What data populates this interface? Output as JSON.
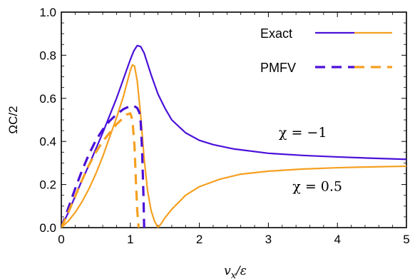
{
  "chart_data": {
    "type": "line",
    "xlabel": "vx/ε",
    "xlabel_main": "v",
    "xlabel_sub": "x",
    "xlabel_rest": "/ε",
    "ylabel": "ΩC/2",
    "xlim": [
      0,
      5
    ],
    "ylim": [
      0,
      1.0
    ],
    "x_ticks": [
      "0",
      "1",
      "2",
      "3",
      "4",
      "5"
    ],
    "y_ticks": [
      "0.0",
      "0.2",
      "0.4",
      "0.6",
      "0.8",
      "1.0"
    ],
    "grid": false,
    "legend_placement": "top-right",
    "legend": [
      {
        "label": "Exact",
        "style": "solid"
      },
      {
        "label": "PMFV",
        "style": "dashed"
      }
    ],
    "annotations": [
      {
        "text": "χ = −1",
        "x": 3.15,
        "y": 0.42
      },
      {
        "text": "χ = 0.5",
        "x": 3.35,
        "y": 0.17
      }
    ],
    "colors": {
      "chi_neg1": "#4b10d9",
      "chi_0_5": "#f5a020"
    },
    "series": [
      {
        "label_ref": "Exact χ = −1",
        "color": "#4b10d9",
        "dash": false,
        "x": [
          0,
          0.1,
          0.2,
          0.3,
          0.4,
          0.5,
          0.6,
          0.7,
          0.8,
          0.9,
          1.0,
          1.05,
          1.1,
          1.15,
          1.2,
          1.3,
          1.4,
          1.5,
          1.6,
          1.8,
          2.0,
          2.2,
          2.5,
          3.0,
          3.5,
          4.0,
          4.5,
          5.0
        ],
        "y": [
          0,
          0.07,
          0.145,
          0.22,
          0.29,
          0.365,
          0.44,
          0.52,
          0.6,
          0.69,
          0.78,
          0.82,
          0.845,
          0.84,
          0.81,
          0.71,
          0.62,
          0.555,
          0.5,
          0.44,
          0.405,
          0.385,
          0.365,
          0.345,
          0.335,
          0.328,
          0.322,
          0.317
        ]
      },
      {
        "label_ref": "Exact χ = 0.5",
        "color": "#f5a020",
        "dash": false,
        "x": [
          0,
          0.1,
          0.2,
          0.3,
          0.4,
          0.5,
          0.6,
          0.7,
          0.8,
          0.9,
          0.95,
          1.0,
          1.03,
          1.06,
          1.1,
          1.15,
          1.2,
          1.25,
          1.3,
          1.35,
          1.4,
          1.45,
          1.5,
          1.6,
          1.8,
          2.0,
          2.3,
          2.6,
          3.0,
          3.5,
          4.0,
          4.5,
          5.0
        ],
        "y": [
          0,
          0.03,
          0.07,
          0.12,
          0.18,
          0.25,
          0.33,
          0.42,
          0.51,
          0.61,
          0.67,
          0.73,
          0.755,
          0.75,
          0.68,
          0.52,
          0.32,
          0.17,
          0.08,
          0.03,
          0.0,
          0.02,
          0.045,
          0.085,
          0.15,
          0.19,
          0.225,
          0.248,
          0.262,
          0.272,
          0.278,
          0.282,
          0.285
        ]
      },
      {
        "label_ref": "PMFV χ = −1",
        "color": "#4b10d9",
        "dash": true,
        "x": [
          0,
          0.1,
          0.2,
          0.3,
          0.4,
          0.5,
          0.6,
          0.7,
          0.8,
          0.9,
          1.0,
          1.05,
          1.1,
          1.13,
          1.15,
          1.17,
          1.19,
          1.2
        ],
        "y": [
          0,
          0.09,
          0.18,
          0.265,
          0.34,
          0.405,
          0.455,
          0.495,
          0.525,
          0.55,
          0.565,
          0.565,
          0.555,
          0.535,
          0.49,
          0.36,
          0.15,
          0.0
        ]
      },
      {
        "label_ref": "PMFV χ = 0.5",
        "color": "#f5a020",
        "dash": true,
        "x": [
          0,
          0.1,
          0.2,
          0.3,
          0.4,
          0.5,
          0.6,
          0.7,
          0.8,
          0.9,
          0.95,
          1.0,
          1.03,
          1.06,
          1.08,
          1.1,
          1.12
        ],
        "y": [
          0,
          0.07,
          0.145,
          0.22,
          0.29,
          0.35,
          0.4,
          0.44,
          0.48,
          0.51,
          0.525,
          0.53,
          0.5,
          0.38,
          0.22,
          0.08,
          0.0
        ]
      }
    ]
  }
}
